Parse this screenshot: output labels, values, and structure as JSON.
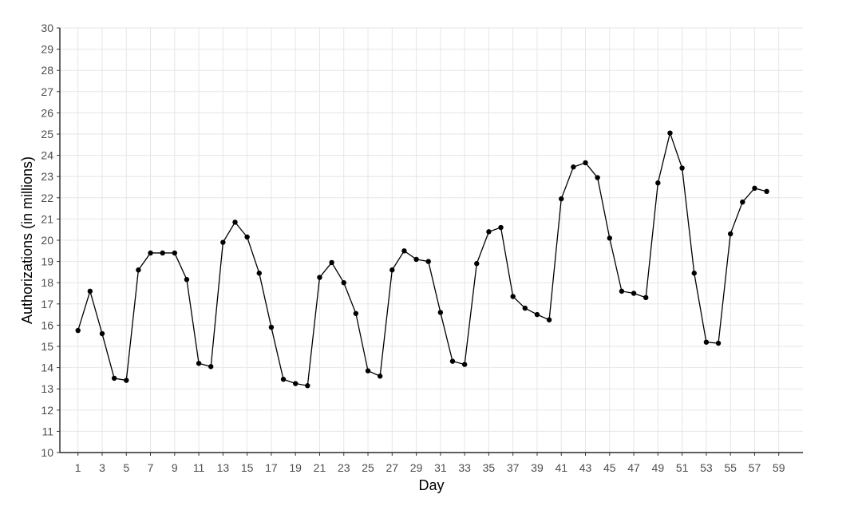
{
  "chart_data": {
    "type": "line",
    "title": "",
    "xlabel": "Day",
    "ylabel": "Authorizations (in millions)",
    "xlim": [
      -0.5,
      61
    ],
    "ylim": [
      10,
      30
    ],
    "x_ticks": [
      1,
      3,
      5,
      7,
      9,
      11,
      13,
      15,
      17,
      19,
      21,
      23,
      25,
      27,
      29,
      31,
      33,
      35,
      37,
      39,
      41,
      43,
      45,
      47,
      49,
      51,
      53,
      55,
      57,
      59
    ],
    "y_ticks": [
      10,
      11,
      12,
      13,
      14,
      15,
      16,
      17,
      18,
      19,
      20,
      21,
      22,
      23,
      24,
      25,
      26,
      27,
      28,
      29,
      30
    ],
    "grid": true,
    "legend": "none",
    "series": [
      {
        "color": "#000000",
        "x": [
          1,
          2,
          3,
          4,
          5,
          6,
          7,
          8,
          9,
          10,
          11,
          12,
          13,
          14,
          15,
          16,
          17,
          18,
          19,
          20,
          21,
          22,
          23,
          24,
          25,
          26,
          27,
          28,
          29,
          30,
          31,
          32,
          33,
          34,
          35,
          36,
          37,
          38,
          39,
          40,
          41,
          42,
          43,
          44,
          45,
          46,
          47,
          48,
          49,
          50,
          51,
          52,
          53,
          54,
          55,
          56,
          57,
          58
        ],
        "y": [
          15.75,
          17.6,
          15.6,
          13.5,
          13.4,
          18.6,
          19.4,
          19.4,
          19.4,
          18.15,
          14.2,
          14.05,
          19.9,
          20.85,
          20.15,
          18.45,
          15.9,
          13.45,
          13.25,
          13.15,
          18.25,
          18.95,
          18.0,
          16.55,
          13.85,
          13.6,
          18.6,
          19.5,
          19.1,
          19.0,
          16.6,
          14.3,
          14.15,
          18.9,
          20.4,
          20.6,
          17.35,
          16.8,
          16.5,
          16.25,
          21.95,
          23.45,
          23.65,
          22.95,
          20.1,
          17.6,
          17.5,
          17.3,
          22.7,
          25.05,
          23.4,
          18.45,
          15.2,
          15.15,
          20.3,
          21.8,
          22.45,
          22.3
        ]
      }
    ]
  }
}
